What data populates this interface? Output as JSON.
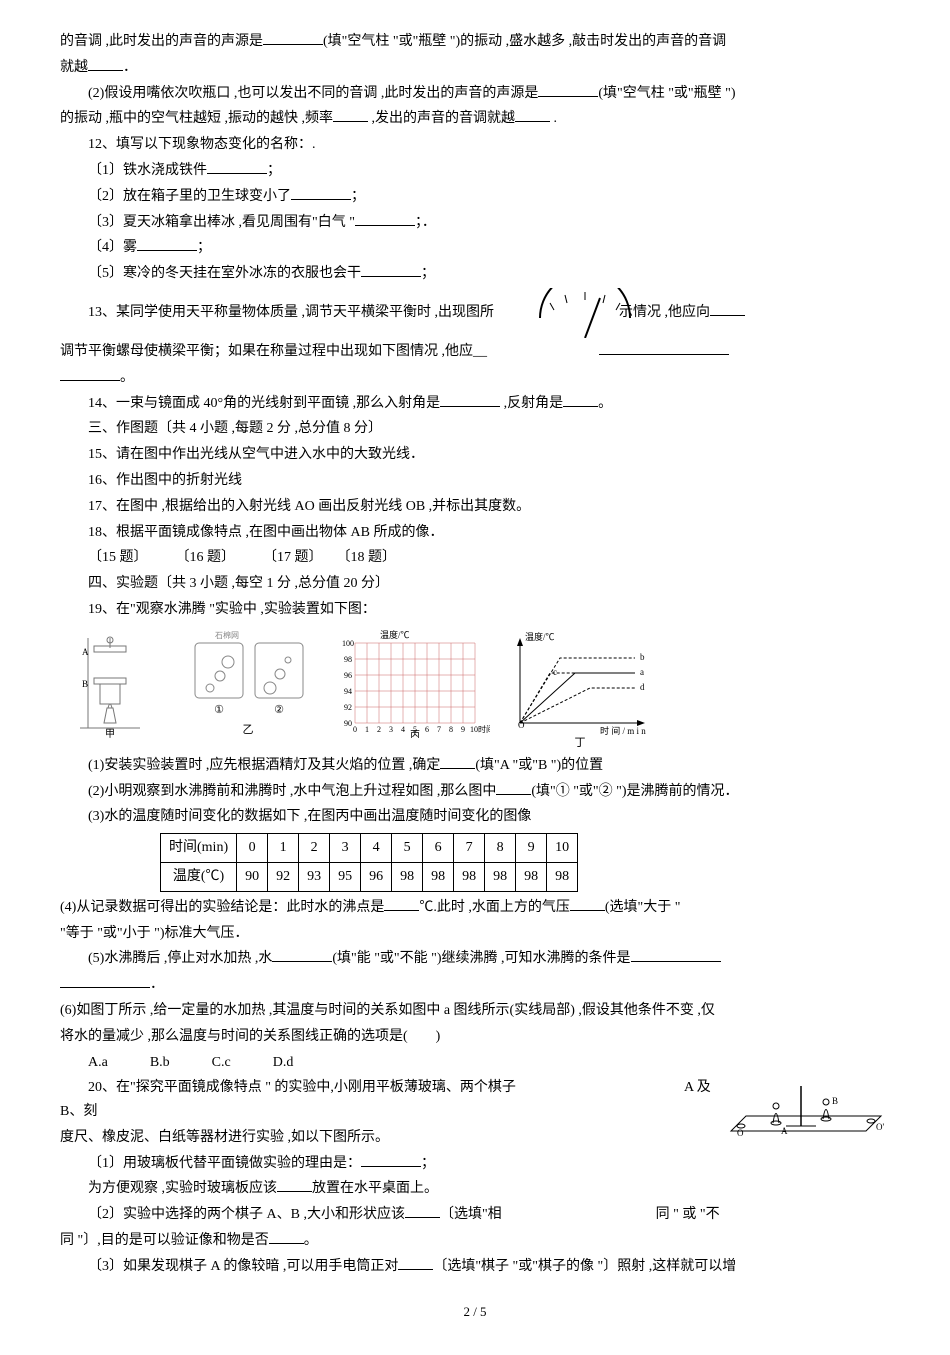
{
  "q11_line1": "的音调 ,此时发出的声音的声源是",
  "q11_fill1_hint": "(填\"空气柱 \"或\"瓶壁 \")的振动 ,盛水越多 ,敲击时发出的声音的音调",
  "q11_line2": "就越",
  "q11_2": " (2)假设用嘴依次吹瓶口 ,也可以发出不同的音调 ,此时发出的声音的声源是",
  "q11_2_hint": "(填\"空气柱 \"或\"瓶壁 \")",
  "q11_2b": "的振动 ,瓶中的空气柱越短 ,振动的越快 ,频率",
  "q11_2c": " ,发出的声音的音调就越",
  "q11_2d": " .",
  "q12_title": "12、填写以下现象物态变化的名称：.",
  "q12_1": "〔1〕铁水浇成铁件",
  "q12_2": "〔2〕放在箱子里的卫生球变小了",
  "q12_3": "〔3〕夏天冰箱拿出棒冰 ,看见周围有\"白气 \"",
  "q12_4": "〔4〕雾",
  "q12_5": "〔5〕寒冷的冬天挂在室外冰冻的衣服也会干",
  "q13a": "13、某同学使用天平称量物体质量 ,调节天平横梁平衡时 ,出现图所",
  "q13b": "示情况 ,他应向",
  "q13c": "调节平衡螺母使横梁平衡；如果在称量过程中出现如下图情况 ,他应__",
  "q13d": "。",
  "q14": "14、一束与镜面成 40°角的光线射到平面镜 ,那么入射角是",
  "q14b": " ,反射角是",
  "q14c": "。",
  "sec3": "三、作图题〔共 4 小题 ,每题 2 分 ,总分值 8 分〕",
  "q15": "15、请在图中作出光线从空气中进入水中的大致光线．",
  "q16": "16、作出图中的折射光线",
  "q17": "17、在图中 ,根据给出的入射光线 AO 画出反射光线 OB ,并标出其度数。",
  "q18": "18、根据平面镜成像特点 ,在图中画出物体 AB 所成的像．",
  "q_labels": "〔15 题〕　　　〔16 题〕　　　〔17 题〕　　〔18 题〕",
  "sec4": "四、实验题〔共 3 小题 ,每空 1 分 ,总分值 20 分〕",
  "q19_title": "19、在\"观察水沸腾 \"实验中 ,实验装置如下图：",
  "q19_1": "(1)安装实验装置时 ,应先根据酒精灯及其火焰的位置 ,确定",
  "q19_1b": "(填\"A \"或\"B \")的位置",
  "q19_2": "(2)小明观察到水沸腾前和沸腾时 ,水中气泡上升过程如图 ,那么图中",
  "q19_2b": "(填\"① \"或\"② \")是沸腾前的情况．",
  "q19_3": "(3)水的温度随时间变化的数据如下 ,在图丙中画出温度随时间变化的图像",
  "table": {
    "headers": [
      "时间(min)",
      "0",
      "1",
      "2",
      "3",
      "4",
      "5",
      "6",
      "7",
      "8",
      "9",
      "10"
    ],
    "row_label": "温度(℃)",
    "values": [
      "90",
      "92",
      "93",
      "95",
      "96",
      "98",
      "98",
      "98",
      "98",
      "98",
      "98"
    ]
  },
  "q19_4a": " (4)从记录数据可得出的实验结论是：此时水的沸点是",
  "q19_4b": "℃.此时 ,水面上方的气压",
  "q19_4c": "(选填\"大于 \"",
  "q19_4d": "\"等于 \"或\"小于 \")标准大气压．",
  "q19_5a": "(5)水沸腾后 ,停止对水加热 ,水",
  "q19_5b": "(填\"能 \"或\"不能 \")继续沸腾 ,可知水沸腾的条件是",
  "q19_5c": "．",
  "q19_6a": " (6)如图丁所示 ,给一定量的水加热 ,其温度与时间的关系如图中 a 图线所示(实线局部) ,假设其他条件不变 ,仅",
  "q19_6b": "将水的量减少 ,那么温度与时间的关系图线正确的选项是(　　)",
  "q19_6_opts": "A.a　　　B.b　　　C.c　　　D.d",
  "q20a": "20、在\"探究平面镜成像特点 \" 的实验中,小刚用平板薄玻璃、两个棋子",
  "q20a2": "A 及 B、刻",
  "q20b": "度尺、橡皮泥、白纸等器材进行实验 ,如以下图所示。",
  "q20_1a": "〔1〕用玻璃板代替平面镜做实验的理由是：",
  "q20_1b": "；",
  "q20_1c": "为方便观察 ,实验时玻璃板应该",
  "q20_1d": "放置在水平桌面上。",
  "q20_2a": "〔2〕实验中选择的两个棋子 A、B ,大小和形状应该",
  "q20_2b": "〔选填\"相",
  "q20_2c": "同 \" 或 \"不",
  "q20_2d": "同 \"〕,目的是可以验证像和物是否",
  "q20_2e": "。",
  "q20_3a": "〔3〕如果发现棋子 A 的像较暗 ,可以用手电筒正对",
  "q20_3b": "〔选填\"棋子 \"或\"棋子的像 \"〕照射 ,这样就可以增",
  "page_num": "2 / 5",
  "chart_bing": {
    "ylabel": "温度/℃",
    "xlabel": "时间/min",
    "yticks": [
      "90",
      "92",
      "94",
      "96",
      "98",
      "100"
    ],
    "xticks": [
      "0",
      "1",
      "2",
      "3",
      "4",
      "5",
      "6",
      "7",
      "8",
      "9",
      "10"
    ],
    "grid_color": "#cc5555",
    "axis_color": "#000"
  },
  "chart_ding": {
    "ylabel": "温度/℃",
    "xlabel": "时 间 / m i n",
    "lines": [
      "b",
      "a",
      "d",
      "c"
    ],
    "caption": "丁"
  }
}
